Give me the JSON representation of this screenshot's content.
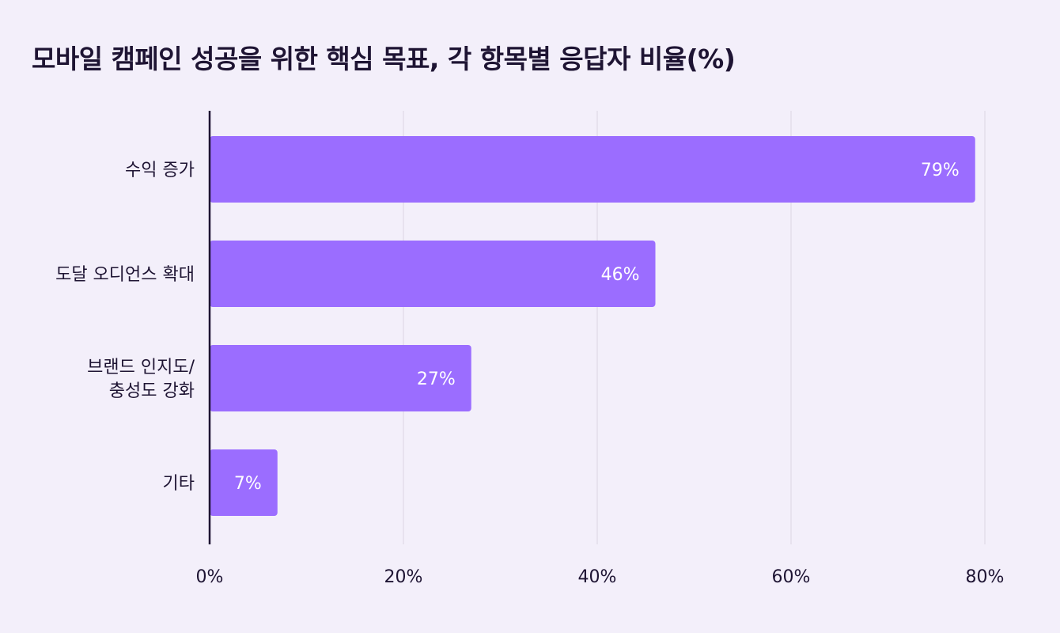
{
  "chart_data": {
    "type": "bar",
    "orientation": "horizontal",
    "title": "모바일 캠페인 성공을 위한 핵심 목표, 각 항목별 응답자 비율(%)",
    "categories": [
      [
        "수익 증가"
      ],
      [
        "도달 오디언스 확대"
      ],
      [
        "브랜드 인지도/",
        "충성도 강화"
      ],
      [
        "기타"
      ]
    ],
    "values": [
      79,
      46,
      27,
      7
    ],
    "data_labels": [
      "79%",
      "46%",
      "27%",
      "7%"
    ],
    "xlim": [
      0,
      80
    ],
    "xticks": [
      0,
      20,
      40,
      60,
      80
    ],
    "xtick_labels": [
      "0%",
      "20%",
      "40%",
      "60%",
      "80%"
    ],
    "xlabel": "",
    "ylabel": "",
    "grid": "vertical",
    "legend": "none",
    "colors": {
      "bar": "#9B6DFF",
      "axis": "#1E1433",
      "grid": "#E3DEE9",
      "background": "#F3EFFA",
      "text": "#1E1433",
      "data_label": "#FFFFFF"
    }
  }
}
